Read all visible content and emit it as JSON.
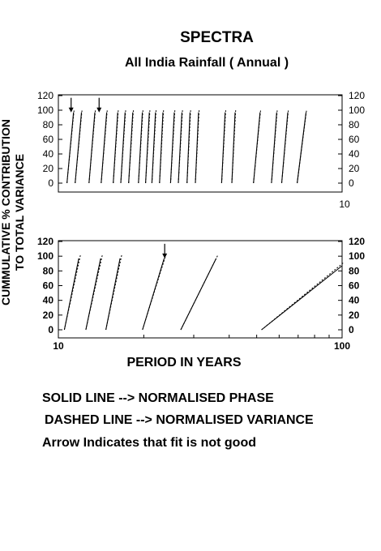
{
  "title": "SPECTRA",
  "subtitle": "All India Rainfall  ( Annual )",
  "ylabel_lines": [
    "CUMMULATIVE %  CONTRIBUTION",
    "TO TOTAL VARIANCE"
  ],
  "xlabel": "PERIOD IN YEARS",
  "notes": {
    "solid": "SOLID LINE --> NORMALISED PHASE",
    "dashed": "DASHED LINE --> NORMALISED VARIANCE",
    "arrow": "Arrow Indicates that fit is not good"
  },
  "chart_data": [
    {
      "type": "line",
      "panel": "top",
      "ylim": [
        0,
        120
      ],
      "yticks": [
        "0",
        "20",
        "40",
        "60",
        "80",
        "100",
        "120"
      ],
      "x_axis_end_label": "10",
      "x_scale": "log",
      "xlim": [
        2,
        10
      ],
      "legend": "none",
      "series": [
        {
          "x": [
            2.1,
            2.18
          ],
          "y": [
            0,
            97
          ]
        },
        {
          "x": [
            2.2,
            2.28
          ],
          "y": [
            0,
            97
          ]
        },
        {
          "x": [
            2.38,
            2.46
          ],
          "y": [
            0,
            97
          ]
        },
        {
          "x": [
            2.55,
            2.63
          ],
          "y": [
            0,
            97
          ]
        },
        {
          "x": [
            2.73,
            2.8
          ],
          "y": [
            0,
            97
          ]
        },
        {
          "x": [
            2.85,
            2.92
          ],
          "y": [
            0,
            97
          ]
        },
        {
          "x": [
            2.98,
            3.05
          ],
          "y": [
            0,
            97
          ]
        },
        {
          "x": [
            3.15,
            3.22
          ],
          "y": [
            0,
            97
          ]
        },
        {
          "x": [
            3.28,
            3.35
          ],
          "y": [
            0,
            97
          ]
        },
        {
          "x": [
            3.4,
            3.47
          ],
          "y": [
            0,
            97
          ]
        },
        {
          "x": [
            3.55,
            3.62
          ],
          "y": [
            0,
            97
          ]
        },
        {
          "x": [
            3.78,
            3.86
          ],
          "y": [
            0,
            97
          ]
        },
        {
          "x": [
            3.95,
            4.03
          ],
          "y": [
            0,
            97
          ]
        },
        {
          "x": [
            4.15,
            4.22
          ],
          "y": [
            0,
            97
          ]
        },
        {
          "x": [
            4.35,
            4.43
          ],
          "y": [
            0,
            97
          ]
        },
        {
          "x": [
            5.05,
            5.15
          ],
          "y": [
            0,
            97
          ]
        },
        {
          "x": [
            5.35,
            5.45
          ],
          "y": [
            0,
            97
          ]
        },
        {
          "x": [
            6.05,
            6.28
          ],
          "y": [
            0,
            97
          ]
        },
        {
          "x": [
            6.7,
            6.9
          ],
          "y": [
            0,
            97
          ]
        },
        {
          "x": [
            7.1,
            7.35
          ],
          "y": [
            0,
            97
          ]
        },
        {
          "x": [
            7.75,
            8.15
          ],
          "y": [
            0,
            97
          ]
        }
      ],
      "arrows": [
        {
          "x": 2.15,
          "y": 97
        },
        {
          "x": 2.52,
          "y": 97
        }
      ]
    },
    {
      "type": "line",
      "panel": "bottom",
      "ylim": [
        0,
        120
      ],
      "yticks": [
        "0",
        "20",
        "40",
        "60",
        "80",
        "100",
        "120"
      ],
      "x_scale": "log",
      "xlim": [
        10,
        100
      ],
      "xtick_labels": [
        "10",
        "100"
      ],
      "legend": "none",
      "series": [
        {
          "x": [
            10.5,
            11.8
          ],
          "y": [
            0,
            97
          ]
        },
        {
          "x": [
            12.5,
            14.1
          ],
          "y": [
            0,
            97
          ]
        },
        {
          "x": [
            14.7,
            16.5
          ],
          "y": [
            0,
            97
          ]
        },
        {
          "x": [
            19.8,
            23.6
          ],
          "y": [
            0,
            97
          ]
        },
        {
          "x": [
            27.0,
            36.0
          ],
          "y": [
            0,
            97
          ]
        },
        {
          "x": [
            52.0,
            100.0
          ],
          "y": [
            0,
            87
          ]
        }
      ],
      "arrows": [
        {
          "x": 23.7,
          "y": 97
        }
      ]
    }
  ]
}
